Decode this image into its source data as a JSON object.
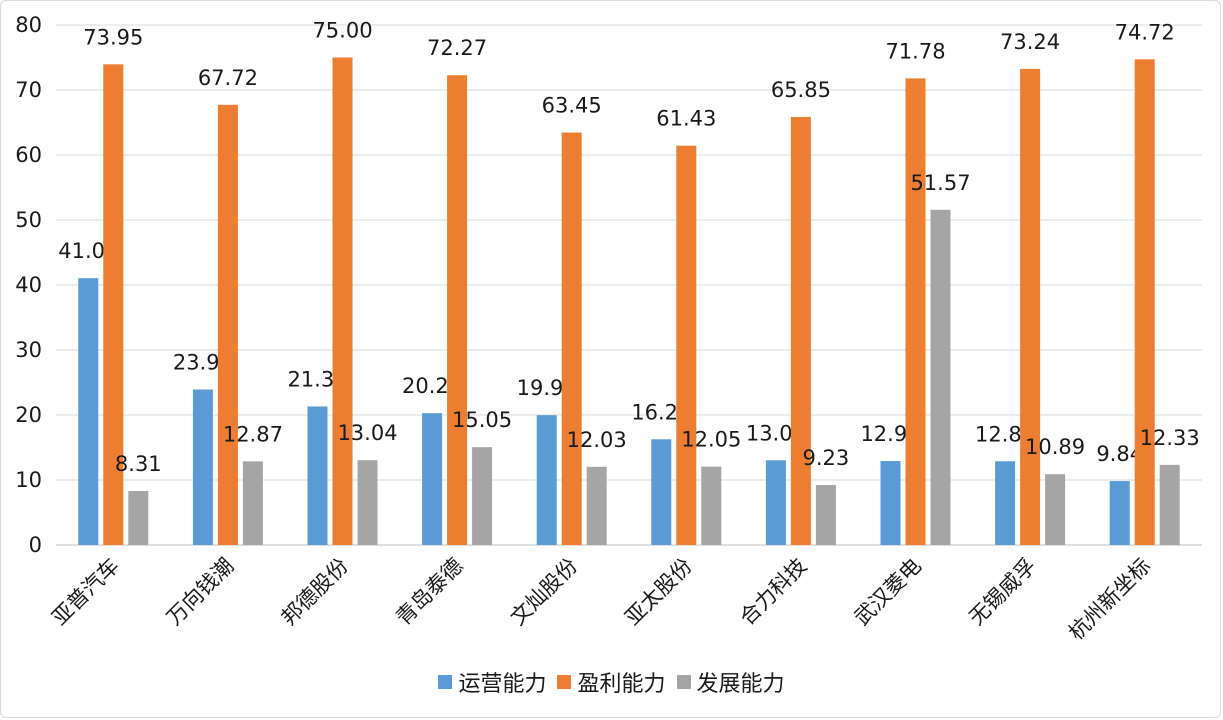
{
  "chart_data": {
    "type": "bar",
    "categories": [
      "亚普汽车",
      "万向钱潮",
      "邦德股份",
      "青岛泰德",
      "文灿股份",
      "亚太股份",
      "合力科技",
      "武汉菱电",
      "无锡威孚",
      "杭州新坐标"
    ],
    "series": [
      {
        "name": "运营能力",
        "color": "#5b9bd5",
        "values": [
          41.05,
          23.92,
          21.31,
          20.28,
          19.97,
          16.26,
          13.03,
          12.92,
          12.88,
          9.84
        ]
      },
      {
        "name": "盈利能力",
        "color": "#ed7d31",
        "values": [
          73.95,
          67.72,
          75.0,
          72.27,
          63.45,
          61.43,
          65.85,
          71.78,
          73.24,
          74.72
        ]
      },
      {
        "name": "发展能力",
        "color": "#a5a5a5",
        "values": [
          8.31,
          12.87,
          13.04,
          15.05,
          12.03,
          12.05,
          9.23,
          51.57,
          10.89,
          12.33
        ]
      }
    ],
    "ylim": [
      0,
      80
    ],
    "yticks": [
      0,
      10,
      20,
      30,
      40,
      50,
      60,
      70,
      80
    ],
    "grid": true,
    "legend": "bottom",
    "title": "",
    "xlabel": "",
    "ylabel": ""
  }
}
